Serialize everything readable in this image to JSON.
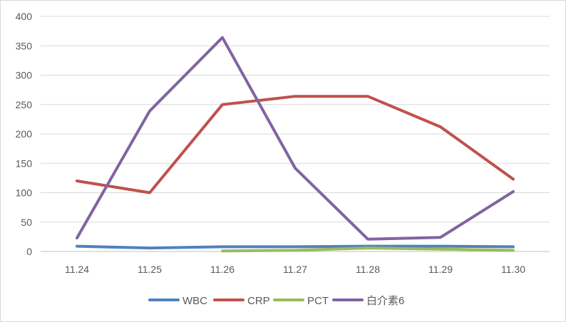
{
  "chart_data": {
    "type": "line",
    "title": "",
    "xlabel": "",
    "ylabel": "",
    "categories": [
      "11.24",
      "11.25",
      "11.26",
      "11.27",
      "11.28",
      "11.29",
      "11.30"
    ],
    "ylim": [
      0,
      400
    ],
    "yticks": [
      0,
      50,
      100,
      150,
      200,
      250,
      300,
      350,
      400
    ],
    "grid": "horizontal",
    "legend": "bottom",
    "series": [
      {
        "name": "WBC",
        "color": "#4f81bd",
        "values": [
          9,
          6,
          8,
          8,
          9,
          9,
          8
        ]
      },
      {
        "name": "CRP",
        "color": "#c0504d",
        "values": [
          120,
          100,
          250,
          264,
          264,
          212,
          123
        ]
      },
      {
        "name": "PCT",
        "color": "#9bbb59",
        "values": [
          null,
          null,
          1,
          2,
          6,
          4,
          2
        ]
      },
      {
        "name": "白介素6",
        "color": "#8064a2",
        "values": [
          23,
          239,
          364,
          142,
          21,
          24,
          102
        ]
      }
    ]
  }
}
